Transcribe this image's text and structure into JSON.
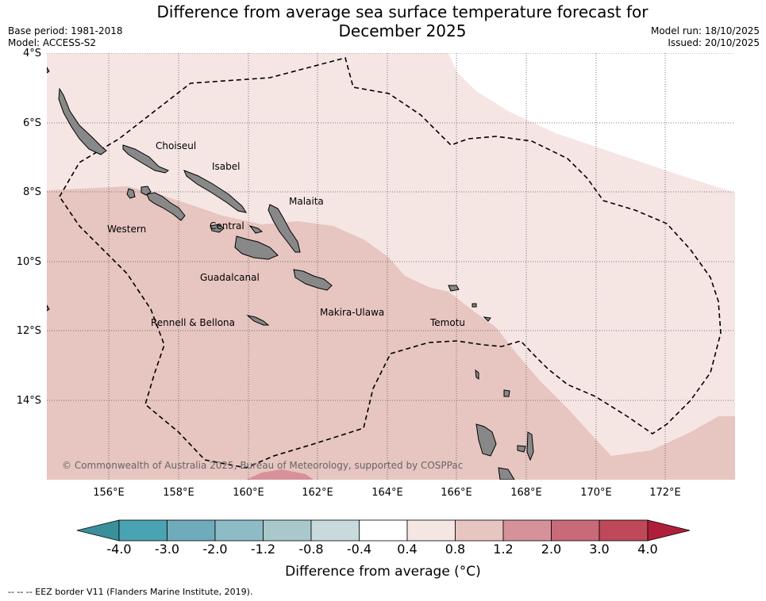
{
  "title_line1": "Difference from average sea surface temperature forecast for",
  "title_line2": "December 2025",
  "base_period": "Base period: 1981-2018",
  "model": "Model: ACCESS-S2",
  "model_run": "Model run: 18/10/2025",
  "issued": "Issued: 20/10/2025",
  "lat_labels": [
    "4°S",
    "6°S",
    "8°S",
    "10°S",
    "12°S",
    "14°S"
  ],
  "lon_labels": [
    "156°E",
    "158°E",
    "160°E",
    "162°E",
    "164°E",
    "166°E",
    "168°E",
    "170°E",
    "172°E"
  ],
  "places": {
    "choiseul": "Choiseul",
    "isabel": "Isabel",
    "malaita": "Malaita",
    "western": "Western",
    "central": "Central",
    "guadalcanal": "Guadalcanal",
    "makira": "Makira-Ulawa",
    "rennell": "Rennell & Bellona",
    "temotu": "Temotu"
  },
  "copyright": "© Commonwealth of Australia 2025, Bureau of Meteorology, supported by COSPPac",
  "colorbar": {
    "ticks": [
      "-4.0",
      "-3.0",
      "-2.0",
      "-1.2",
      "-0.8",
      "-0.4",
      "0.4",
      "0.8",
      "1.2",
      "2.0",
      "3.0",
      "4.0"
    ],
    "colors": [
      "#3a8f9b",
      "#4aa3b3",
      "#6eabbb",
      "#8dbcc6",
      "#a9c8cc",
      "#c8dadb",
      "#ffffff",
      "#f5e6e4",
      "#e7c5c0",
      "#d6919a",
      "#c96a78",
      "#bf4859",
      "#b01f3a"
    ],
    "title": "Difference from average ($^\\circ$C)"
  },
  "colorbar_title_display": "Difference from average (°C)",
  "eez_note": "--  --  -- EEZ border V11 (Flanders Marine Institute, 2019).",
  "map_colors": {
    "band_0_4_0_8": "#f5e6e4",
    "band_0_8_1_2": "#e7c5c0",
    "band_1_2_2_0": "#d6919a",
    "land": "#888888",
    "neutral": "#ffffff"
  }
}
